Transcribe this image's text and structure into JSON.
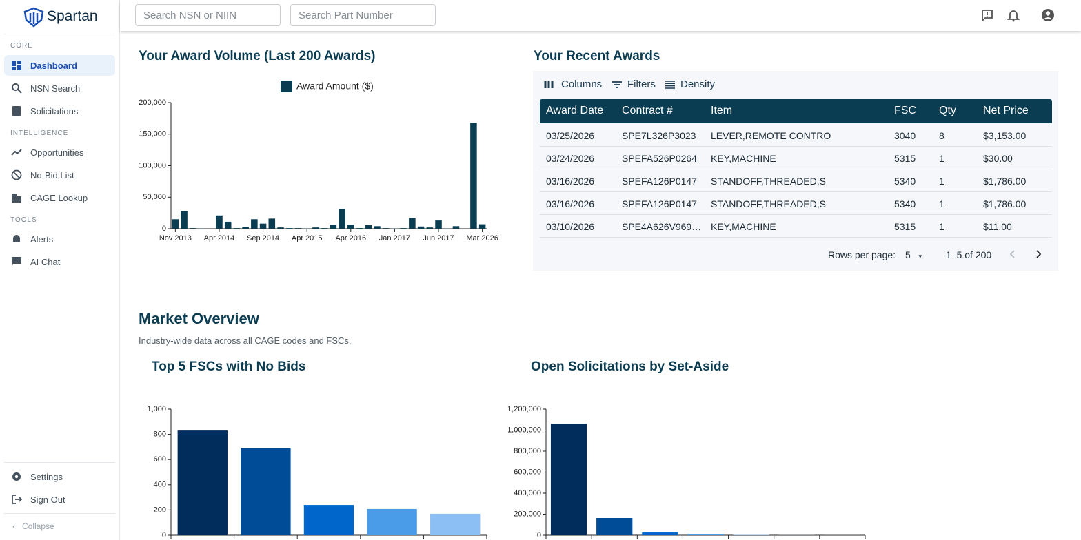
{
  "sidebar": {
    "brand": "Spartan",
    "sections": [
      {
        "label": "CORE",
        "items": [
          "Dashboard",
          "NSN Search",
          "Solicitations"
        ]
      },
      {
        "label": "INTELLIGENCE",
        "items": [
          "Opportunities",
          "No-Bid List",
          "CAGE Lookup"
        ]
      },
      {
        "label": "TOOLS",
        "items": [
          "Alerts",
          "AI Chat"
        ]
      }
    ],
    "footer": [
      "Settings",
      "Sign Out"
    ],
    "collapse": "Collapse"
  },
  "search": {
    "nsn": "Search NSN or NIIN",
    "part": "Search Part Number"
  },
  "recent_awards": {
    "title": "Your Recent Awards",
    "toolbar": [
      "Columns",
      "Filters",
      "Density"
    ],
    "columns": [
      "Award Date",
      "Contract #",
      "Item",
      "FSC",
      "Qty",
      "Net Price"
    ],
    "rows": [
      [
        "03/25/2026",
        "SPE7L326P3023",
        "LEVER,REMOTE CONTRO",
        "3040",
        "8",
        "$3,153.00"
      ],
      [
        "03/24/2026",
        "SPEFA526P0264",
        "KEY,MACHINE",
        "5315",
        "1",
        "$30.00"
      ],
      [
        "03/16/2026",
        "SPEFA126P0147",
        "STANDOFF,THREADED,S",
        "5340",
        "1",
        "$1,786.00"
      ],
      [
        "03/16/2026",
        "SPEFA126P0147",
        "STANDOFF,THREADED,S",
        "5340",
        "1",
        "$1,786.00"
      ],
      [
        "03/10/2026",
        "SPE4A626V969…",
        "KEY,MACHINE",
        "5315",
        "1",
        "$11.00"
      ]
    ],
    "rows_per_page_label": "Rows per page:",
    "rows_per_page": "5",
    "range": "1–5 of 200"
  },
  "market": {
    "title": "Market Overview",
    "subtitle": "Industry-wide data across all CAGE codes and FSCs."
  },
  "chart_data": [
    {
      "type": "bar",
      "title": "Your Award Volume (Last 200 Awards)",
      "categories": [
        "Nov 2013",
        null,
        null,
        null,
        null,
        "Apr 2014",
        null,
        null,
        null,
        null,
        "Sep 2014",
        null,
        null,
        null,
        null,
        "Apr 2015",
        null,
        null,
        null,
        null,
        "Apr 2016",
        null,
        null,
        null,
        null,
        "Jan 2017",
        null,
        null,
        null,
        null,
        "Jun 2017",
        null,
        null,
        null,
        null,
        "Mar 2026"
      ],
      "series": [
        {
          "name": "Award Amount ($)",
          "color": "#0b3d52",
          "values": [
            15000,
            28000,
            1000,
            500,
            0,
            21000,
            11000,
            1000,
            3000,
            15000,
            8000,
            16000,
            2000,
            1000,
            1000,
            500,
            2000,
            1000,
            6500,
            31000,
            6500,
            1000,
            5500,
            4000,
            1000,
            500,
            1000,
            17000,
            3500,
            2000,
            13000,
            500,
            4000,
            0,
            168000,
            7000
          ]
        }
      ],
      "ylim": [
        0,
        200000
      ],
      "yticks": [
        0,
        {
          "value": 50000,
          "label": "50,000"
        },
        {
          "value": 100000,
          "label": "100,000"
        },
        {
          "value": 150000,
          "label": "150,000"
        },
        {
          "value": 200000,
          "label": "200,000"
        }
      ]
    },
    {
      "type": "bar",
      "title": "Top 5 FSCs with No Bids",
      "categories": [
        null,
        null,
        null,
        null,
        null
      ],
      "values": [
        830,
        690,
        240,
        208,
        170
      ],
      "colors": [
        "#002d5c",
        "#004c97",
        "#0066cc",
        "#4a9be8",
        "#8cc0f5"
      ],
      "ylim": [
        0,
        1000
      ],
      "yticks": [
        0,
        200,
        400,
        600,
        800,
        {
          "value": 1000,
          "label": "1,000"
        }
      ]
    },
    {
      "type": "bar",
      "title": "Open Solicitations by Set-Aside",
      "categories": [
        null,
        null,
        null,
        null,
        null,
        null,
        null
      ],
      "values": [
        1060000,
        164000,
        26000,
        13000,
        3000,
        1000,
        500
      ],
      "colors": [
        "#002d5c",
        "#004c97",
        "#0066cc",
        "#4a9be8",
        "#8cc0f5",
        "#b5d6f8",
        "#dbeafc"
      ],
      "ylim": [
        0,
        1200000
      ],
      "yticks": [
        0,
        {
          "value": 200000,
          "label": "200,000"
        },
        {
          "value": 400000,
          "label": "400,000"
        },
        {
          "value": 600000,
          "label": "600,000"
        },
        {
          "value": 800000,
          "label": "800,000"
        },
        {
          "value": 1000000,
          "label": "1,000,000"
        },
        {
          "value": 1200000,
          "label": "1,200,000"
        }
      ]
    }
  ]
}
